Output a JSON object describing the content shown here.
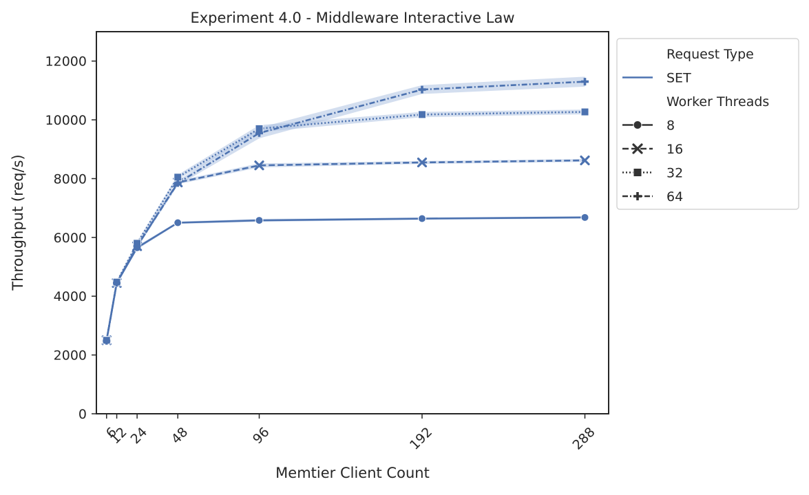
{
  "chart_data": {
    "type": "line",
    "title": "Experiment 4.0 - Middleware Interactive Law",
    "xlabel": "Memtier Client Count",
    "ylabel": "Throughput (req/s)",
    "x": [
      6,
      12,
      24,
      48,
      96,
      192,
      288
    ],
    "x_tick_labels": [
      "6",
      "12",
      "24",
      "48",
      "96",
      "192",
      "288"
    ],
    "xlim": [
      0,
      302
    ],
    "ylim": [
      0,
      13000
    ],
    "y_ticks": [
      0,
      2000,
      4000,
      6000,
      8000,
      10000,
      12000
    ],
    "y_tick_labels": [
      "0",
      "2000",
      "4000",
      "6000",
      "8000",
      "10000",
      "12000"
    ],
    "grid": false,
    "legend_position": "outside-right",
    "line_color": "#4c72b0",
    "band_color": "#aec3e2",
    "legend": {
      "hue_title": "Request Type",
      "hue_entries": [
        "SET"
      ],
      "style_title": "Worker Threads",
      "style_entries": [
        "8",
        "16",
        "32",
        "64"
      ]
    },
    "series": [
      {
        "name": "8",
        "marker": "circle",
        "dash": "solid",
        "values": [
          2500,
          4450,
          5650,
          6500,
          6580,
          6640,
          6680
        ],
        "band": [
          80,
          60,
          60,
          40,
          50,
          40,
          40
        ]
      },
      {
        "name": "16",
        "marker": "x",
        "dash": "dashed",
        "values": [
          2500,
          4450,
          5700,
          7870,
          8450,
          8550,
          8620
        ],
        "band": [
          80,
          60,
          60,
          60,
          70,
          50,
          50
        ]
      },
      {
        "name": "32",
        "marker": "square",
        "dash": "dotted",
        "values": [
          2500,
          4480,
          5800,
          8050,
          9700,
          10180,
          10270
        ],
        "band": [
          80,
          60,
          60,
          80,
          120,
          90,
          80
        ]
      },
      {
        "name": "64",
        "marker": "plus",
        "dash": "dashdot",
        "values": [
          2480,
          4450,
          5700,
          7850,
          9550,
          11030,
          11300
        ],
        "band": [
          80,
          60,
          60,
          80,
          180,
          150,
          170
        ]
      }
    ]
  }
}
